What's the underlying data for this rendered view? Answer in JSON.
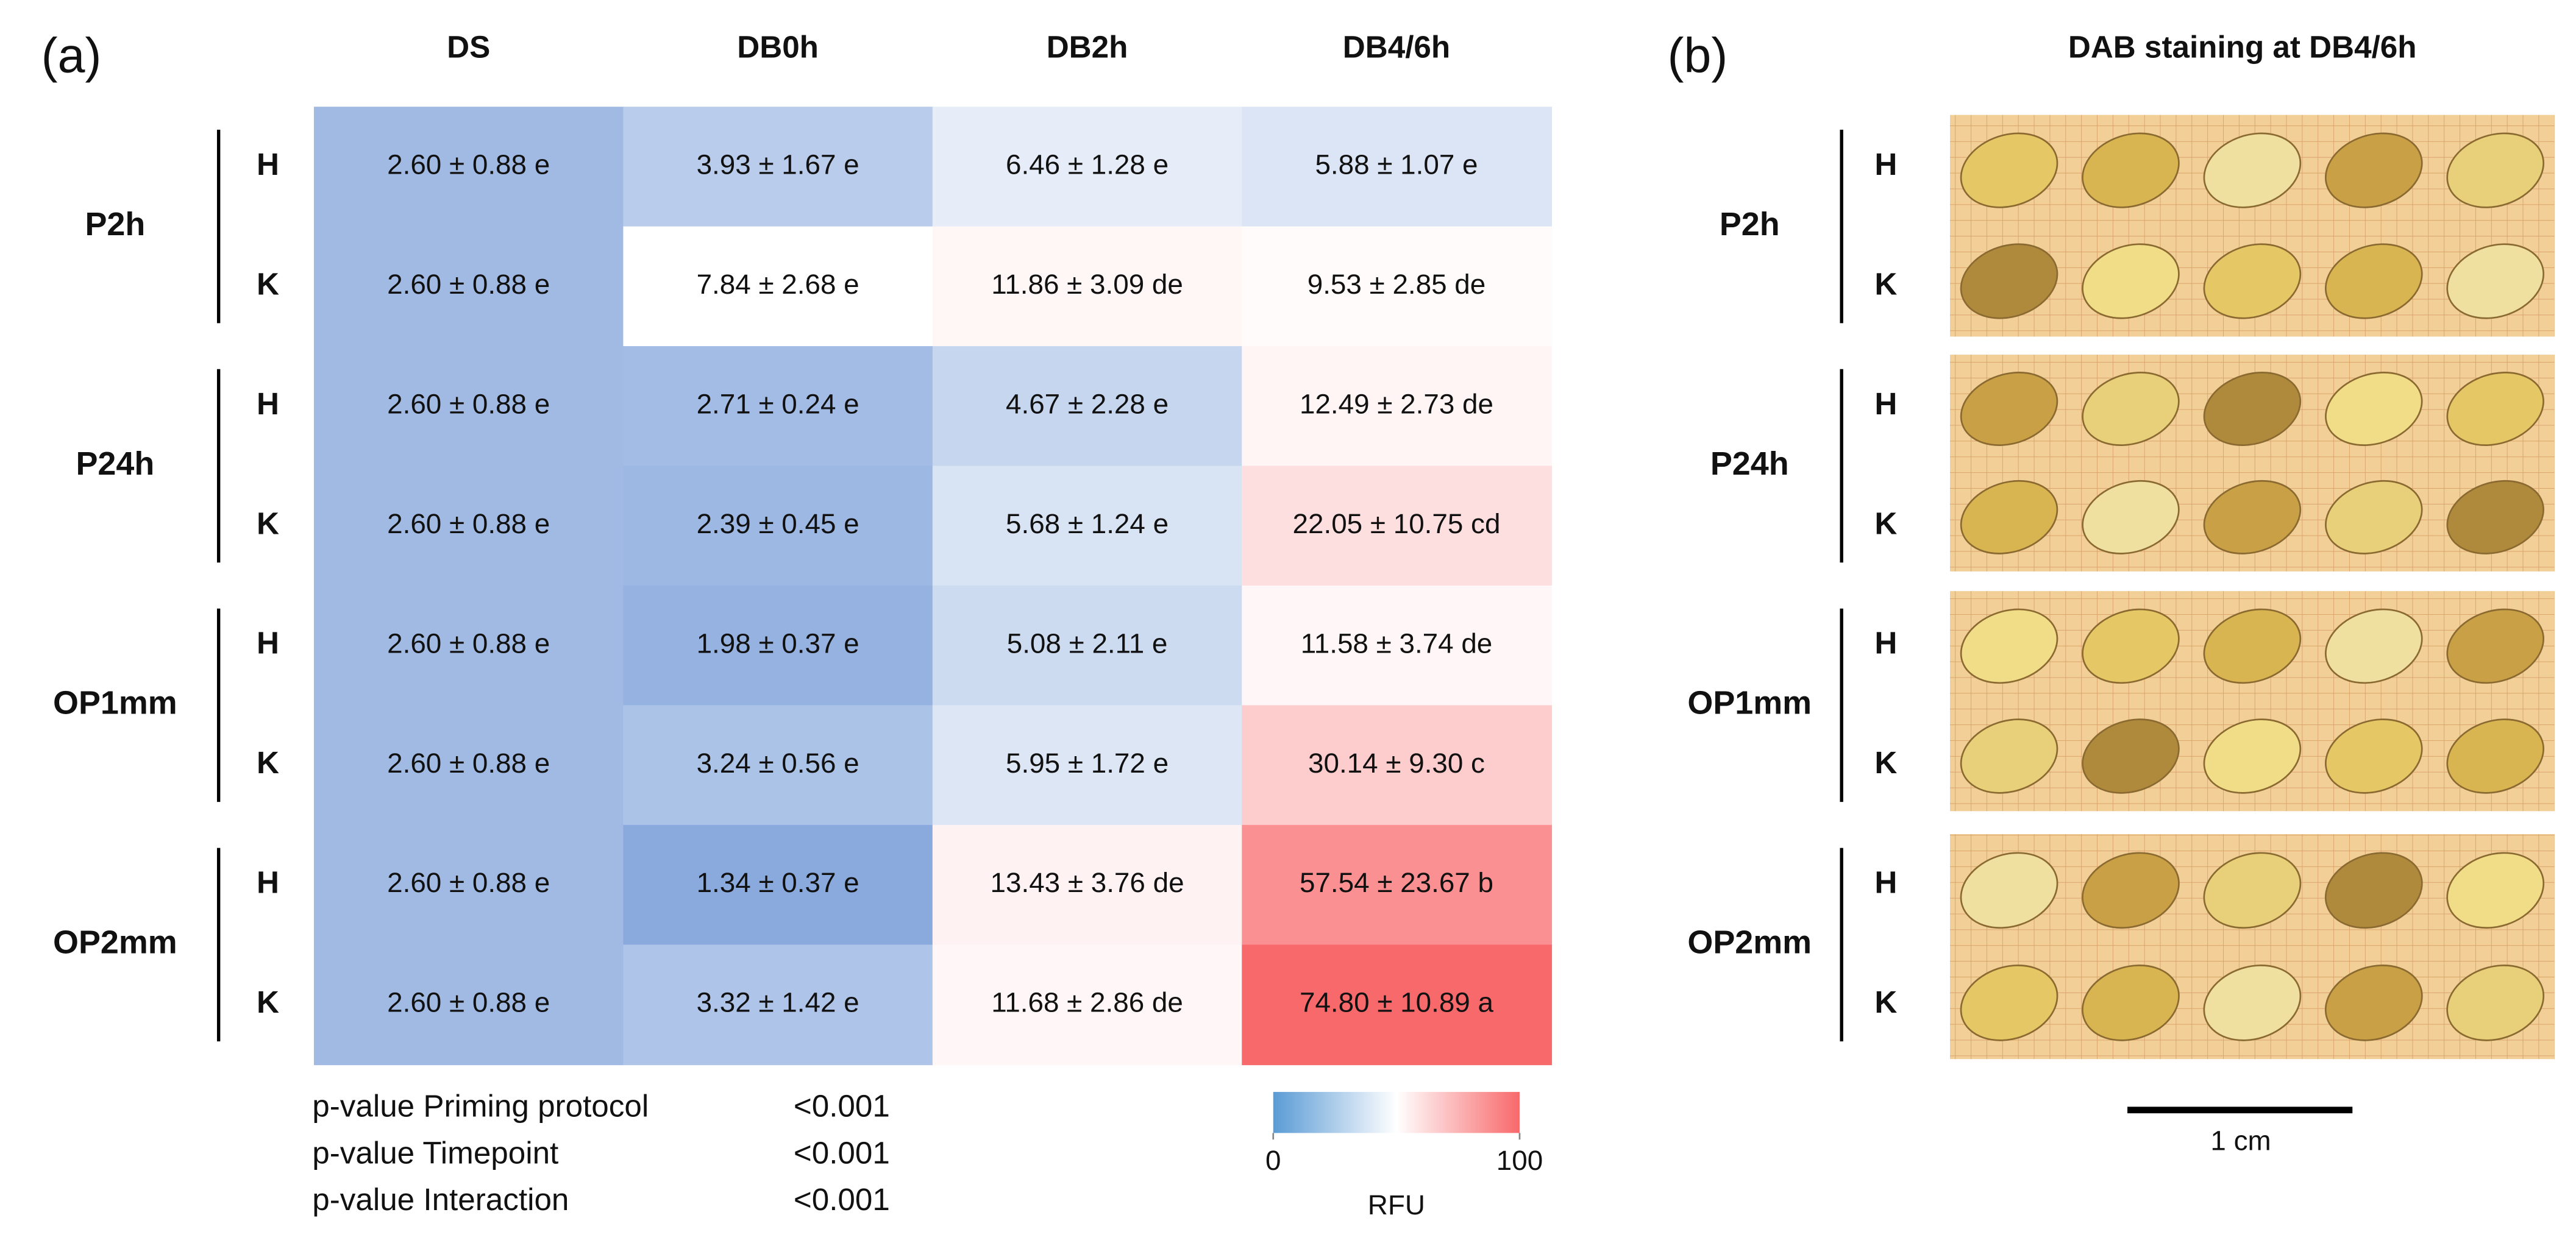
{
  "panel_labels": [
    "(a)",
    "(b)"
  ],
  "chart_data": {
    "type": "heatmap",
    "columns": [
      "DS",
      "DB0h",
      "DB2h",
      "DB4/6h"
    ],
    "groups": [
      {
        "name": "P2h",
        "rows": [
          "H",
          "K"
        ]
      },
      {
        "name": "P24h",
        "rows": [
          "H",
          "K"
        ]
      },
      {
        "name": "OP1mm",
        "rows": [
          "H",
          "K"
        ]
      },
      {
        "name": "OP2mm",
        "rows": [
          "H",
          "K"
        ]
      }
    ],
    "values": [
      [
        2.6,
        3.93,
        6.46,
        5.88
      ],
      [
        2.6,
        7.84,
        11.86,
        9.53
      ],
      [
        2.6,
        2.71,
        4.67,
        12.49
      ],
      [
        2.6,
        2.39,
        5.68,
        22.05
      ],
      [
        2.6,
        1.98,
        5.08,
        11.58
      ],
      [
        2.6,
        3.24,
        5.95,
        30.14
      ],
      [
        2.6,
        1.34,
        13.43,
        57.54
      ],
      [
        2.6,
        3.32,
        11.68,
        74.8
      ]
    ],
    "value_labels": [
      [
        "2.60 ± 0.88 e",
        "3.93 ± 1.67 e",
        "6.46 ± 1.28 e",
        "5.88 ± 1.07 e"
      ],
      [
        "2.60 ± 0.88 e",
        "7.84 ± 2.68 e",
        "11.86 ± 3.09 de",
        "9.53 ± 2.85 de"
      ],
      [
        "2.60 ± 0.88 e",
        "2.71 ± 0.24 e",
        "4.67 ± 2.28 e",
        "12.49 ± 2.73 de"
      ],
      [
        "2.60 ± 0.88 e",
        "2.39 ± 0.45 e",
        "5.68 ± 1.24 e",
        "22.05 ± 10.75 cd"
      ],
      [
        "2.60 ± 0.88 e",
        "1.98 ± 0.37 e",
        "5.08 ± 2.11 e",
        "11.58 ± 3.74 de"
      ],
      [
        "2.60 ± 0.88 e",
        "3.24 ± 0.56 e",
        "5.95 ± 1.72 e",
        "30.14 ± 9.30 c"
      ],
      [
        "2.60 ± 0.88 e",
        "1.34 ± 0.37 e",
        "13.43 ± 3.76 de",
        "57.54 ± 23.67 b"
      ],
      [
        "2.60 ± 0.88 e",
        "3.32 ± 1.42 e",
        "11.68 ± 2.86 de",
        "74.80 ± 10.89 a"
      ]
    ],
    "colors": [
      "#8aaade",
      "#ffffff",
      "#f8696b"
    ],
    "colorbar": {
      "zlim": [
        0,
        100
      ],
      "zticks": [
        0,
        100
      ],
      "label": "RFU",
      "colors": [
        "#5b9bd5",
        "#ffffff",
        "#f8696b"
      ]
    },
    "stats": [
      {
        "label": "p-value Priming protocol",
        "value": "<0.001"
      },
      {
        "label": "p-value Timepoint",
        "value": "<0.001"
      },
      {
        "label": "p-value Interaction",
        "value": "<0.001"
      }
    ]
  },
  "panel_b": {
    "title": "DAB staining at DB4/6h",
    "scale_bar_label": "1 cm"
  }
}
